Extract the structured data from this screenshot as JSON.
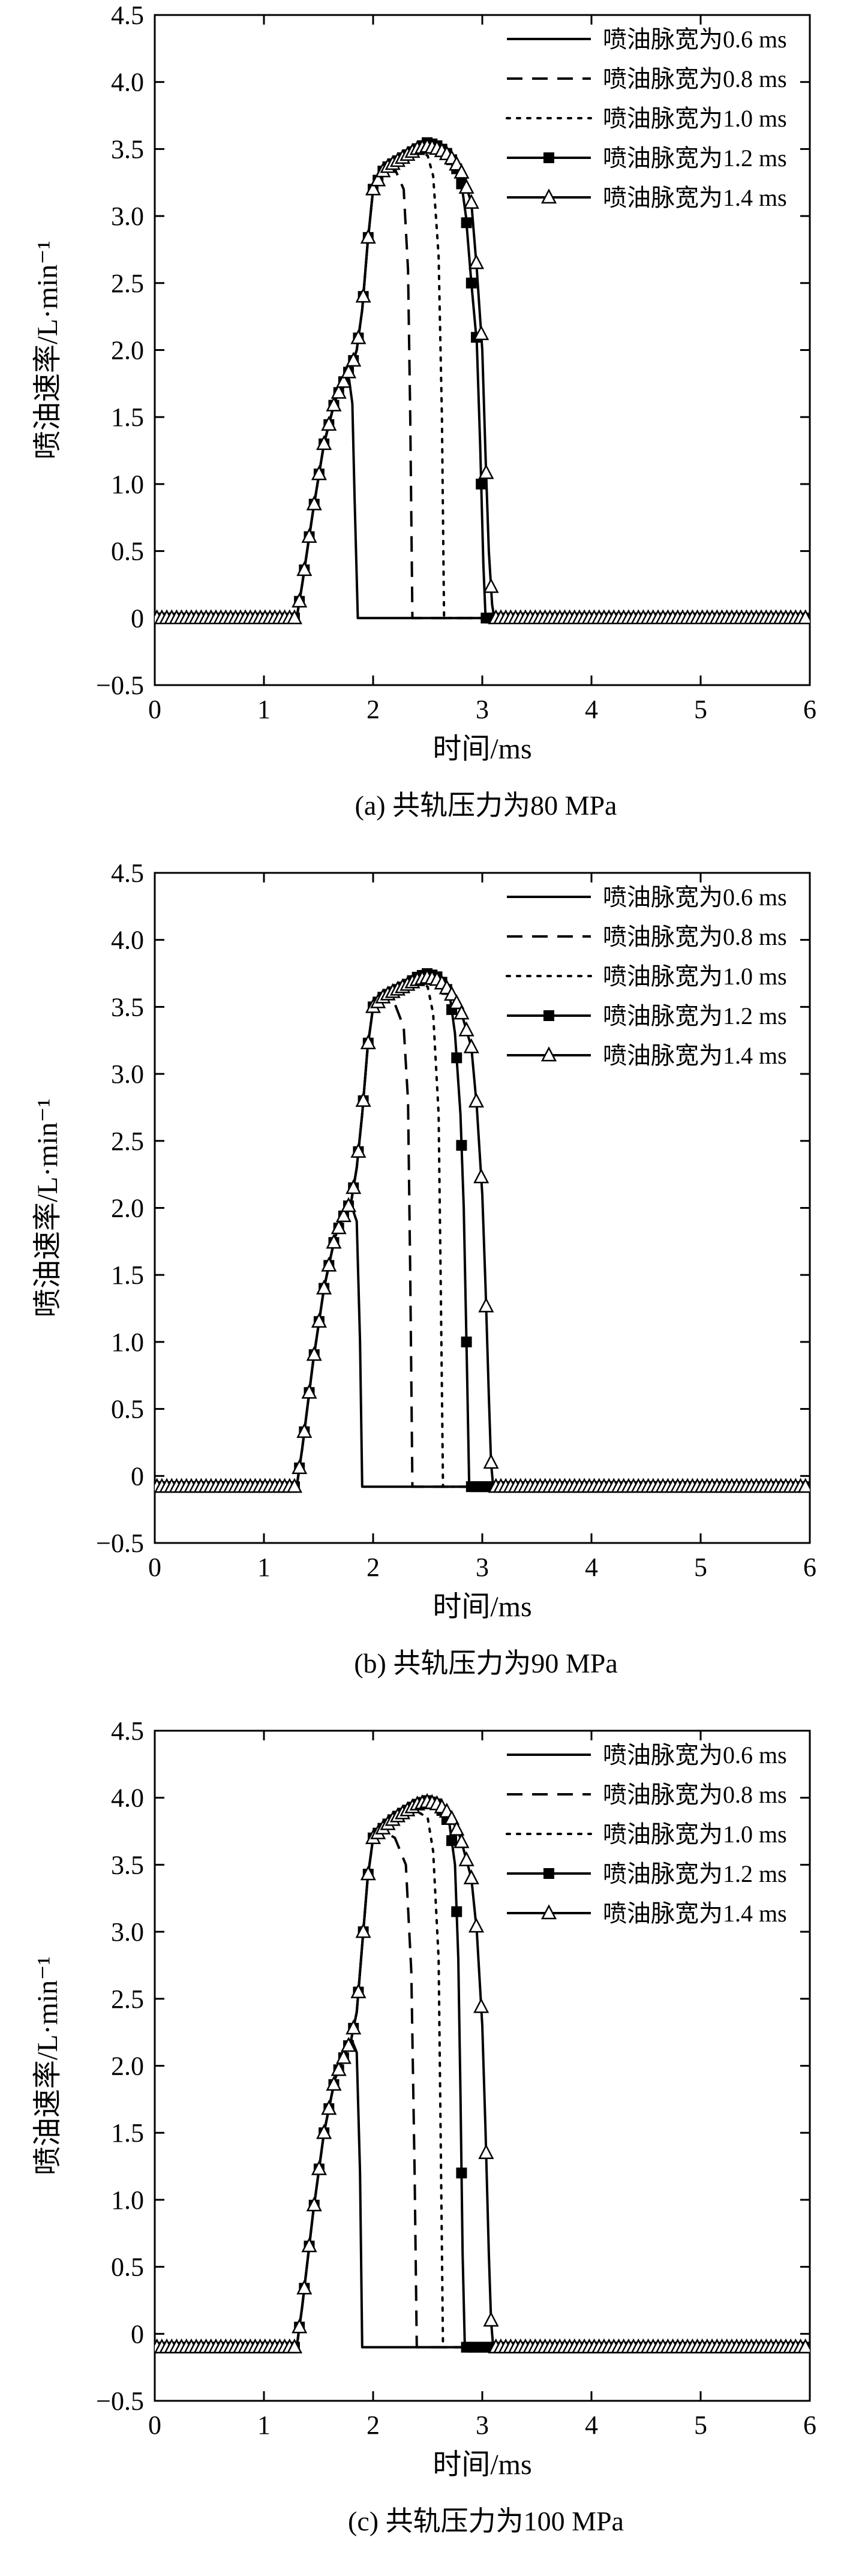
{
  "chart_data": [
    {
      "type": "line",
      "caption": "(a) 共轨压力为80 MPa",
      "xlabel": "时间/ms",
      "ylabel": "喷油速率/L·min⁻¹",
      "xlim": [
        0,
        6
      ],
      "ylim": [
        -0.5,
        4.5
      ],
      "xticks": [
        "0",
        "1",
        "2",
        "3",
        "4",
        "5",
        "6"
      ],
      "yticks": [
        "−0.5",
        "0",
        "0.5",
        "1.0",
        "1.5",
        "2.0",
        "2.5",
        "3.0",
        "3.5",
        "4.0",
        "4.5"
      ],
      "grid": false,
      "legend_position": "top-right",
      "series": [
        {
          "name": "喷油脉宽为0.6 ms",
          "style": "solid",
          "marker": "none",
          "x": [
            0,
            1.3,
            1.35,
            1.45,
            1.55,
            1.65,
            1.72,
            1.78,
            1.81,
            1.83,
            1.86,
            6
          ],
          "y": [
            0,
            0,
            0.25,
            0.8,
            1.3,
            1.62,
            1.75,
            1.78,
            1.6,
            0.9,
            0,
            0
          ]
        },
        {
          "name": "喷油脉宽为0.8 ms",
          "style": "dashed",
          "marker": "none",
          "x": [
            0,
            1.3,
            1.35,
            1.45,
            1.55,
            1.65,
            1.75,
            1.8,
            1.85,
            1.9,
            1.95,
            2.0,
            2.1,
            2.2,
            2.28,
            2.32,
            2.34,
            2.36,
            6
          ],
          "y": [
            0,
            0,
            0.25,
            0.8,
            1.3,
            1.62,
            1.8,
            1.87,
            2.0,
            2.3,
            2.8,
            3.2,
            3.35,
            3.35,
            3.2,
            2.6,
            1.5,
            0,
            0
          ]
        },
        {
          "name": "喷油脉宽为1.0 ms",
          "style": "dotted",
          "marker": "none",
          "x": [
            0,
            1.3,
            1.35,
            1.45,
            1.55,
            1.65,
            1.75,
            1.8,
            1.85,
            1.9,
            1.95,
            2.0,
            2.1,
            2.2,
            2.3,
            2.4,
            2.5,
            2.55,
            2.6,
            2.63,
            2.65,
            6
          ],
          "y": [
            0,
            0,
            0.25,
            0.8,
            1.3,
            1.62,
            1.8,
            1.87,
            2.0,
            2.3,
            2.8,
            3.2,
            3.35,
            3.4,
            3.45,
            3.5,
            3.45,
            3.3,
            2.7,
            1.5,
            0,
            0
          ]
        },
        {
          "name": "喷油脉宽为1.2 ms",
          "style": "solid",
          "marker": "square",
          "x": [
            0,
            1.3,
            1.35,
            1.45,
            1.55,
            1.65,
            1.75,
            1.8,
            1.85,
            1.9,
            1.95,
            2.0,
            2.1,
            2.2,
            2.3,
            2.4,
            2.5,
            2.6,
            2.7,
            2.8,
            2.85,
            2.9,
            2.95,
            2.98,
            3.01,
            3.03,
            6
          ],
          "y": [
            0,
            0,
            0.25,
            0.8,
            1.3,
            1.62,
            1.8,
            1.87,
            2.0,
            2.3,
            2.8,
            3.2,
            3.35,
            3.4,
            3.45,
            3.5,
            3.55,
            3.52,
            3.45,
            3.3,
            3.0,
            2.5,
            2.05,
            1.3,
            0.4,
            0,
            0
          ]
        },
        {
          "name": "喷油脉宽为1.4 ms",
          "style": "solid",
          "marker": "triangle",
          "x": [
            0,
            1.3,
            1.35,
            1.45,
            1.55,
            1.65,
            1.75,
            1.8,
            1.85,
            1.9,
            1.95,
            2.0,
            2.1,
            2.2,
            2.3,
            2.4,
            2.5,
            2.6,
            2.7,
            2.8,
            2.9,
            2.95,
            3.0,
            3.03,
            3.06,
            3.09,
            3.11,
            6
          ],
          "y": [
            0,
            0,
            0.25,
            0.8,
            1.3,
            1.62,
            1.8,
            1.87,
            2.0,
            2.3,
            2.8,
            3.2,
            3.35,
            3.4,
            3.45,
            3.5,
            3.52,
            3.5,
            3.45,
            3.35,
            3.1,
            2.6,
            2.0,
            1.2,
            0.5,
            0.1,
            0,
            0
          ]
        }
      ]
    },
    {
      "type": "line",
      "caption": "(b) 共轨压力为90 MPa",
      "xlabel": "时间/ms",
      "ylabel": "喷油速率/L·min⁻¹",
      "xlim": [
        0,
        6
      ],
      "ylim": [
        -0.5,
        4.5
      ],
      "xticks": [
        "0",
        "1",
        "2",
        "3",
        "4",
        "5",
        "6"
      ],
      "yticks": [
        "−0.5",
        "0",
        "0.5",
        "1.0",
        "1.5",
        "2.0",
        "2.5",
        "3.0",
        "3.5",
        "4.0",
        "4.5"
      ],
      "grid": false,
      "legend_position": "top-right",
      "series": [
        {
          "name": "喷油脉宽为0.6 ms",
          "style": "solid",
          "marker": "none",
          "x": [
            0,
            1.3,
            1.35,
            1.45,
            1.55,
            1.65,
            1.72,
            1.8,
            1.85,
            1.88,
            1.9,
            6
          ],
          "y": [
            -0.08,
            -0.08,
            0.2,
            0.85,
            1.4,
            1.78,
            1.95,
            2.02,
            1.9,
            1.0,
            -0.08,
            -0.08
          ]
        },
        {
          "name": "喷油脉宽为0.8 ms",
          "style": "dashed",
          "marker": "none",
          "x": [
            0,
            1.3,
            1.35,
            1.45,
            1.55,
            1.65,
            1.75,
            1.8,
            1.85,
            1.9,
            1.95,
            2.0,
            2.1,
            2.2,
            2.28,
            2.32,
            2.34,
            2.36,
            6
          ],
          "y": [
            -0.08,
            -0.08,
            0.2,
            0.85,
            1.4,
            1.78,
            1.98,
            2.05,
            2.3,
            2.7,
            3.2,
            3.5,
            3.55,
            3.52,
            3.35,
            2.8,
            1.5,
            -0.08,
            -0.08
          ]
        },
        {
          "name": "喷油脉宽为1.0 ms",
          "style": "dotted",
          "marker": "none",
          "x": [
            0,
            1.3,
            1.35,
            1.45,
            1.55,
            1.65,
            1.75,
            1.8,
            1.85,
            1.9,
            1.95,
            2.0,
            2.1,
            2.2,
            2.3,
            2.4,
            2.5,
            2.55,
            2.6,
            2.62,
            2.64,
            6
          ],
          "y": [
            -0.08,
            -0.08,
            0.2,
            0.85,
            1.4,
            1.78,
            1.98,
            2.05,
            2.3,
            2.7,
            3.2,
            3.5,
            3.58,
            3.62,
            3.66,
            3.7,
            3.65,
            3.45,
            2.7,
            1.4,
            -0.08,
            -0.08
          ]
        },
        {
          "name": "喷油脉宽为1.2 ms",
          "style": "solid",
          "marker": "square",
          "x": [
            0,
            1.3,
            1.35,
            1.45,
            1.55,
            1.65,
            1.75,
            1.8,
            1.85,
            1.9,
            1.95,
            2.0,
            2.1,
            2.2,
            2.3,
            2.4,
            2.5,
            2.6,
            2.7,
            2.75,
            2.8,
            2.83,
            2.86,
            2.88,
            6
          ],
          "y": [
            -0.08,
            -0.08,
            0.2,
            0.85,
            1.4,
            1.78,
            1.98,
            2.05,
            2.3,
            2.7,
            3.2,
            3.5,
            3.58,
            3.62,
            3.66,
            3.72,
            3.75,
            3.72,
            3.6,
            3.3,
            2.7,
            2.0,
            0.8,
            -0.08,
            -0.08
          ]
        },
        {
          "name": "喷油脉宽为1.4 ms",
          "style": "solid",
          "marker": "triangle",
          "x": [
            0,
            1.3,
            1.35,
            1.45,
            1.55,
            1.65,
            1.75,
            1.8,
            1.85,
            1.9,
            1.95,
            2.0,
            2.1,
            2.2,
            2.3,
            2.4,
            2.5,
            2.6,
            2.7,
            2.8,
            2.9,
            2.95,
            3.0,
            3.03,
            3.06,
            3.08,
            3.1,
            6
          ],
          "y": [
            -0.08,
            -0.08,
            0.2,
            0.85,
            1.4,
            1.78,
            1.98,
            2.05,
            2.3,
            2.7,
            3.2,
            3.5,
            3.58,
            3.62,
            3.66,
            3.7,
            3.72,
            3.7,
            3.62,
            3.48,
            3.2,
            2.75,
            2.1,
            1.4,
            0.6,
            0.1,
            -0.08,
            -0.08
          ]
        }
      ]
    },
    {
      "type": "line",
      "caption": "(c) 共轨压力为100 MPa",
      "xlabel": "时间/ms",
      "ylabel": "喷油速率/L·min⁻¹",
      "xlim": [
        0,
        6
      ],
      "ylim": [
        -0.5,
        4.5
      ],
      "xticks": [
        "0",
        "1",
        "2",
        "3",
        "4",
        "5",
        "6"
      ],
      "yticks": [
        "−0.5",
        "0",
        "0.5",
        "1.0",
        "1.5",
        "2.0",
        "2.5",
        "3.0",
        "3.5",
        "4.0",
        "4.5"
      ],
      "grid": false,
      "legend_position": "top-right",
      "series": [
        {
          "name": "喷油脉宽为0.6 ms",
          "style": "solid",
          "marker": "none",
          "x": [
            0,
            1.3,
            1.35,
            1.45,
            1.55,
            1.65,
            1.72,
            1.8,
            1.85,
            1.88,
            1.9,
            6
          ],
          "y": [
            -0.1,
            -0.1,
            0.2,
            0.9,
            1.5,
            1.9,
            2.1,
            2.2,
            2.1,
            1.2,
            -0.1,
            -0.1
          ]
        },
        {
          "name": "喷油脉宽为0.8 ms",
          "style": "dashed",
          "marker": "none",
          "x": [
            0,
            1.3,
            1.35,
            1.45,
            1.55,
            1.65,
            1.75,
            1.8,
            1.85,
            1.9,
            1.95,
            2.0,
            2.1,
            2.2,
            2.3,
            2.35,
            2.38,
            2.4,
            6
          ],
          "y": [
            -0.1,
            -0.1,
            0.2,
            0.9,
            1.5,
            1.9,
            2.1,
            2.2,
            2.4,
            2.9,
            3.4,
            3.7,
            3.75,
            3.7,
            3.5,
            2.7,
            1.2,
            -0.1,
            -0.1
          ]
        },
        {
          "name": "喷油脉宽为1.0 ms",
          "style": "dotted",
          "marker": "none",
          "x": [
            0,
            1.3,
            1.35,
            1.45,
            1.55,
            1.65,
            1.75,
            1.8,
            1.85,
            1.9,
            1.95,
            2.0,
            2.1,
            2.2,
            2.3,
            2.4,
            2.5,
            2.55,
            2.6,
            2.62,
            2.64,
            6
          ],
          "y": [
            -0.1,
            -0.1,
            0.2,
            0.9,
            1.5,
            1.9,
            2.1,
            2.2,
            2.4,
            2.9,
            3.4,
            3.7,
            3.78,
            3.82,
            3.86,
            3.9,
            3.85,
            3.6,
            2.8,
            1.4,
            -0.1,
            -0.1
          ]
        },
        {
          "name": "喷油脉宽为1.2 ms",
          "style": "solid",
          "marker": "square",
          "x": [
            0,
            1.3,
            1.35,
            1.45,
            1.55,
            1.65,
            1.75,
            1.8,
            1.85,
            1.9,
            1.95,
            2.0,
            2.1,
            2.2,
            2.3,
            2.4,
            2.5,
            2.6,
            2.7,
            2.75,
            2.78,
            2.8,
            2.82,
            2.84,
            6
          ],
          "y": [
            -0.1,
            -0.1,
            0.2,
            0.9,
            1.5,
            1.9,
            2.1,
            2.2,
            2.4,
            2.9,
            3.4,
            3.7,
            3.78,
            3.85,
            3.9,
            3.95,
            3.98,
            3.95,
            3.8,
            3.5,
            2.8,
            1.8,
            0.6,
            -0.1,
            -0.1
          ]
        },
        {
          "name": "喷油脉宽为1.4 ms",
          "style": "solid",
          "marker": "triangle",
          "x": [
            0,
            1.3,
            1.35,
            1.45,
            1.55,
            1.65,
            1.75,
            1.8,
            1.85,
            1.9,
            1.95,
            2.0,
            2.1,
            2.2,
            2.3,
            2.4,
            2.5,
            2.6,
            2.7,
            2.8,
            2.9,
            2.95,
            3.0,
            3.03,
            3.06,
            3.08,
            3.1,
            6
          ],
          "y": [
            -0.1,
            -0.1,
            0.2,
            0.9,
            1.5,
            1.9,
            2.1,
            2.2,
            2.4,
            2.9,
            3.4,
            3.7,
            3.78,
            3.85,
            3.9,
            3.95,
            3.97,
            3.95,
            3.88,
            3.7,
            3.4,
            3.0,
            2.3,
            1.5,
            0.6,
            0.1,
            -0.1,
            -0.1
          ]
        }
      ]
    }
  ]
}
